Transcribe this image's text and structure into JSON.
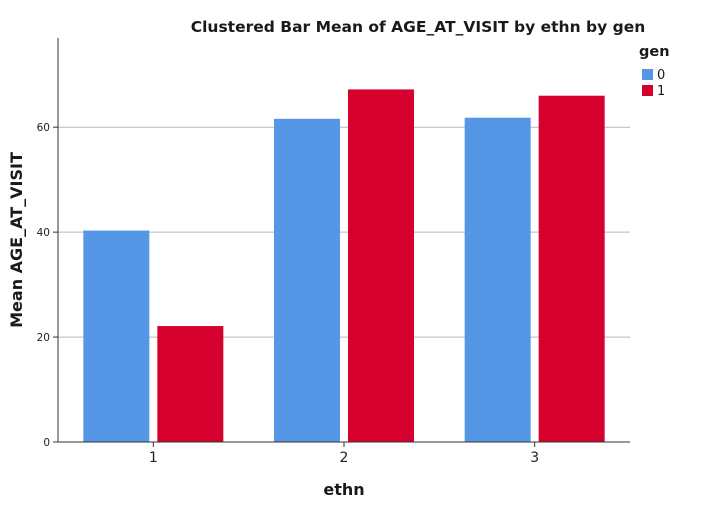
{
  "chart_data": {
    "type": "bar",
    "title": "Clustered Bar Mean of AGE_AT_VISIT by ethn by gen",
    "xlabel": "ethn",
    "ylabel": "Mean AGE_AT_VISIT",
    "categories": [
      "1",
      "2",
      "3"
    ],
    "series": [
      {
        "name": "0",
        "color": "#5596e6",
        "values": [
          40.3,
          61.6,
          61.8
        ]
      },
      {
        "name": "1",
        "color": "#d6002f",
        "values": [
          22.1,
          67.2,
          66.0
        ]
      }
    ],
    "ylim": [
      0,
      77
    ],
    "yticks": [
      0,
      20,
      40,
      60
    ],
    "ytick_labels": [
      "0",
      "20",
      "40",
      "60"
    ],
    "grid": true,
    "legend": {
      "title": "gen",
      "position": "top-right"
    }
  }
}
